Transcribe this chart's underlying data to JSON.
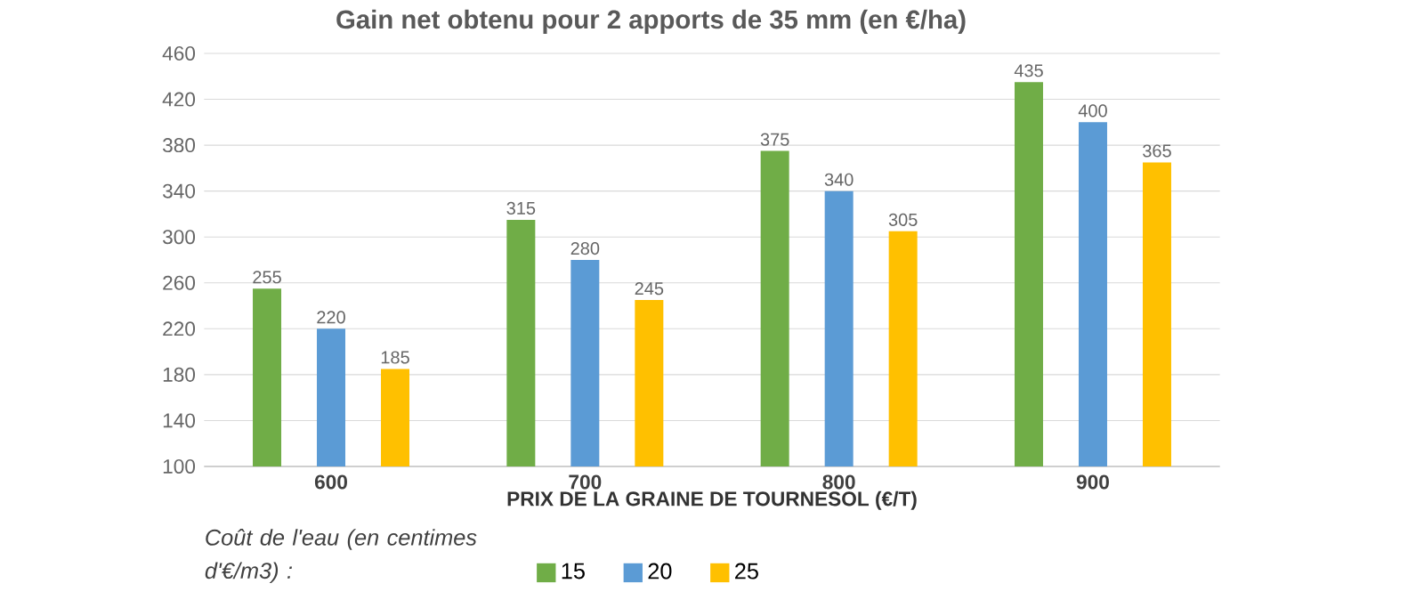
{
  "chart_data": {
    "type": "bar",
    "title": "Gain net obtenu pour 2 apports de 35 mm (en €/ha)",
    "xlabel": "PRIX DE LA GRAINE DE TOURNESOL (€/T)",
    "legend_title": "Coût de l'eau (en centimes d'€/m3) :",
    "categories": [
      "600",
      "700",
      "800",
      "900"
    ],
    "series": [
      {
        "name": "15",
        "color": "#70ad47",
        "values": [
          255,
          315,
          375,
          435
        ]
      },
      {
        "name": "20",
        "color": "#5b9bd5",
        "values": [
          220,
          280,
          340,
          400
        ]
      },
      {
        "name": "25",
        "color": "#ffc000",
        "values": [
          185,
          245,
          305,
          365
        ]
      }
    ],
    "ylim": [
      100,
      460
    ],
    "yticks": [
      100,
      140,
      180,
      220,
      260,
      300,
      340,
      380,
      420,
      460
    ],
    "grid": "y",
    "legend": "bottom",
    "data_labels": true
  }
}
